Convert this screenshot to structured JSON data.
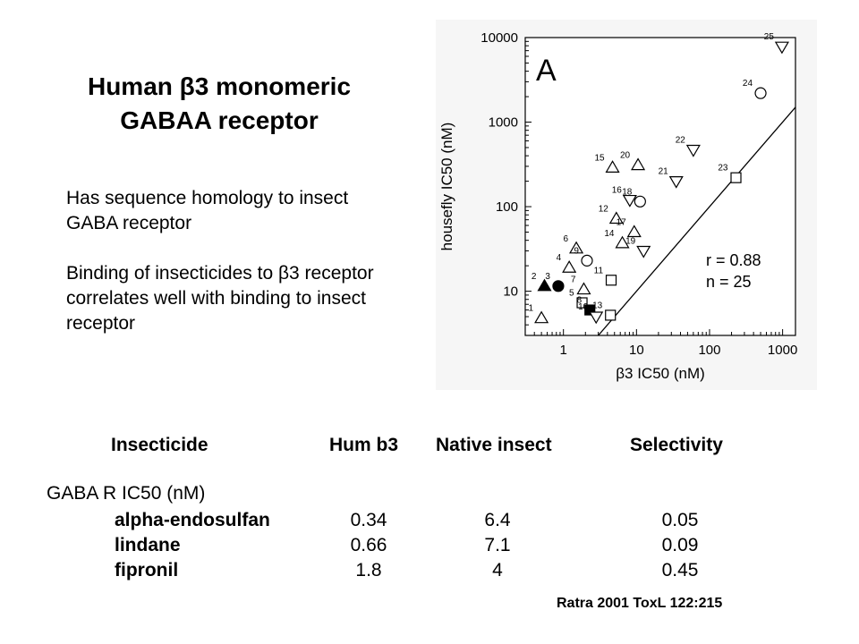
{
  "slide": {
    "title_line1": "Human β3 monomeric",
    "title_line2": "GABAA receptor",
    "bullet1": "Has sequence homology to insect GABA receptor",
    "bullet2": "Binding of insecticides to β3 receptor correlates well with binding to insect receptor",
    "citation": "Ratra 2001 ToxL 122:215"
  },
  "table": {
    "headers": [
      "Insecticide",
      "Hum b3",
      "Native insect",
      "Selectivity"
    ],
    "group_label": "GABA R IC50 (nM)",
    "rows": [
      {
        "name": "alpha-endosulfan",
        "hum": "0.34",
        "insect": "6.4",
        "sel": "0.05"
      },
      {
        "name": "lindane",
        "hum": "0.66",
        "insect": "7.1",
        "sel": "0.09"
      },
      {
        "name": "fipronil",
        "hum": "1.8",
        "insect": "4",
        "sel": "0.45"
      }
    ]
  },
  "chart_data": {
    "type": "scatter",
    "panel_label": "A",
    "xlabel": "β3 IC50 (nM)",
    "ylabel": "housefly IC50 (nM)",
    "x_scale": "log",
    "y_scale": "log",
    "xlim": [
      0.3,
      1500
    ],
    "ylim": [
      3,
      10000
    ],
    "x_ticks": [
      "1",
      "10",
      "100",
      "1000"
    ],
    "y_ticks": [
      "10",
      "100",
      "1000",
      "10000"
    ],
    "grid": false,
    "fit_line": "y = x",
    "stats": [
      "r = 0.88",
      "n = 25"
    ],
    "points": [
      {
        "id": "1",
        "x": 0.5,
        "y": 4.8,
        "marker": "triangle-up"
      },
      {
        "id": "2",
        "x": 0.55,
        "y": 11.5,
        "marker": "triangle-up-filled"
      },
      {
        "id": "3",
        "x": 0.85,
        "y": 11.5,
        "marker": "circle-filled"
      },
      {
        "id": "4",
        "x": 1.2,
        "y": 19,
        "marker": "triangle-up"
      },
      {
        "id": "5",
        "x": 1.8,
        "y": 7.3,
        "marker": "square"
      },
      {
        "id": "6",
        "x": 1.5,
        "y": 32,
        "marker": "triangle-up"
      },
      {
        "id": "7",
        "x": 1.9,
        "y": 10.5,
        "marker": "triangle-up"
      },
      {
        "id": "8",
        "x": 2.3,
        "y": 6,
        "marker": "square-filled"
      },
      {
        "id": "9",
        "x": 2.1,
        "y": 23,
        "marker": "circle"
      },
      {
        "id": "10",
        "x": 2.8,
        "y": 5,
        "marker": "triangle-down"
      },
      {
        "id": "11",
        "x": 4.5,
        "y": 13.5,
        "marker": "square"
      },
      {
        "id": "12",
        "x": 5.3,
        "y": 72,
        "marker": "triangle-up"
      },
      {
        "id": "13",
        "x": 4.4,
        "y": 5.2,
        "marker": "square"
      },
      {
        "id": "14",
        "x": 6.4,
        "y": 37,
        "marker": "triangle-up"
      },
      {
        "id": "15",
        "x": 4.7,
        "y": 290,
        "marker": "triangle-up"
      },
      {
        "id": "16",
        "x": 8.1,
        "y": 120,
        "marker": "triangle-down"
      },
      {
        "id": "17",
        "x": 9.3,
        "y": 50,
        "marker": "triangle-up"
      },
      {
        "id": "18",
        "x": 11.2,
        "y": 115,
        "marker": "circle"
      },
      {
        "id": "19",
        "x": 12.5,
        "y": 30,
        "marker": "triangle-down"
      },
      {
        "id": "20",
        "x": 10.5,
        "y": 310,
        "marker": "triangle-up"
      },
      {
        "id": "21",
        "x": 35,
        "y": 200,
        "marker": "triangle-down"
      },
      {
        "id": "22",
        "x": 60,
        "y": 470,
        "marker": "triangle-down"
      },
      {
        "id": "23",
        "x": 230,
        "y": 220,
        "marker": "square"
      },
      {
        "id": "24",
        "x": 500,
        "y": 2200,
        "marker": "circle"
      },
      {
        "id": "25",
        "x": 980,
        "y": 7800,
        "marker": "triangle-down"
      }
    ]
  }
}
